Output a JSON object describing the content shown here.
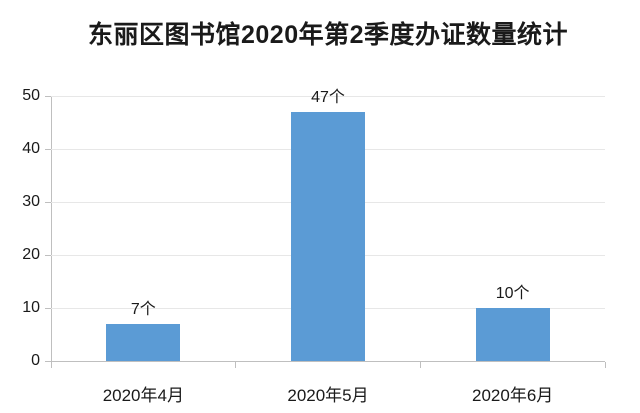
{
  "title": "东丽区图书馆2020年第2季度办证数量统计",
  "colors": {
    "bar": "#5B9BD5",
    "gridline": "#E7E7E7",
    "axis": "#BFBFBF",
    "text": "#1A1A1A",
    "background": "#FFFFFF"
  },
  "chart_data": {
    "type": "bar",
    "title": "东丽区图书馆2020年第2季度办证数量统计",
    "categories": [
      "2020年4月",
      "2020年5月",
      "2020年6月"
    ],
    "values": [
      7,
      47,
      10
    ],
    "data_labels": [
      "7个",
      "47个",
      "10个"
    ],
    "unit": "个",
    "xlabel": "",
    "ylabel": "",
    "ylim": [
      0,
      50
    ],
    "yticks": [
      0,
      10,
      20,
      30,
      40,
      50
    ],
    "grid": true,
    "legend": "none",
    "bar_color": "#5B9BD5"
  }
}
